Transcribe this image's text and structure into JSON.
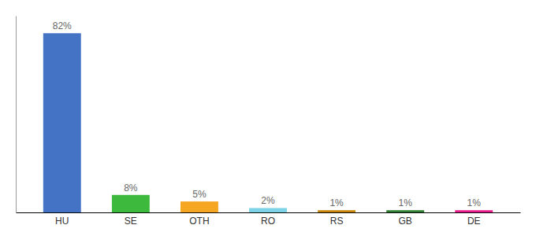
{
  "chart_data": {
    "type": "bar",
    "categories": [
      "HU",
      "SE",
      "OTH",
      "RO",
      "RS",
      "GB",
      "DE"
    ],
    "values": [
      82,
      8,
      5,
      2,
      1,
      1,
      1
    ],
    "value_labels": [
      "82%",
      "8%",
      "5%",
      "2%",
      "1%",
      "1%",
      "1%"
    ],
    "colors": [
      "#4472c4",
      "#3dba3d",
      "#f5a623",
      "#7ed4e6",
      "#c8860a",
      "#2e7d32",
      "#e91e8c"
    ],
    "ylim": [
      0,
      90
    ],
    "data_labels": true,
    "tick_labels": "x",
    "grid": false
  }
}
